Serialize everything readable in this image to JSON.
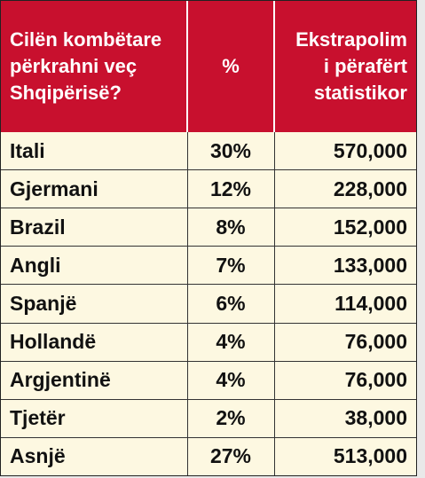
{
  "table": {
    "header": [
      [
        "Cilën kombëtare",
        "përkrahni veç",
        "Shqipërisë?"
      ],
      [
        "%"
      ],
      [
        "Ekstrapolim",
        "i përafërt",
        "statistikor"
      ]
    ],
    "rows": [
      [
        "Itali",
        "30%",
        "570,000"
      ],
      [
        "Gjermani",
        "12%",
        "228,000"
      ],
      [
        "Brazil",
        "8%",
        "152,000"
      ],
      [
        "Angli",
        "7%",
        "133,000"
      ],
      [
        "Spanjë",
        "6%",
        "114,000"
      ],
      [
        "Hollandë",
        "4%",
        "76,000"
      ],
      [
        "Argjentinë",
        "4%",
        "76,000"
      ],
      [
        "Tjetër",
        "2%",
        "38,000"
      ],
      [
        "Asnjë",
        "27%",
        "513,000"
      ]
    ]
  }
}
